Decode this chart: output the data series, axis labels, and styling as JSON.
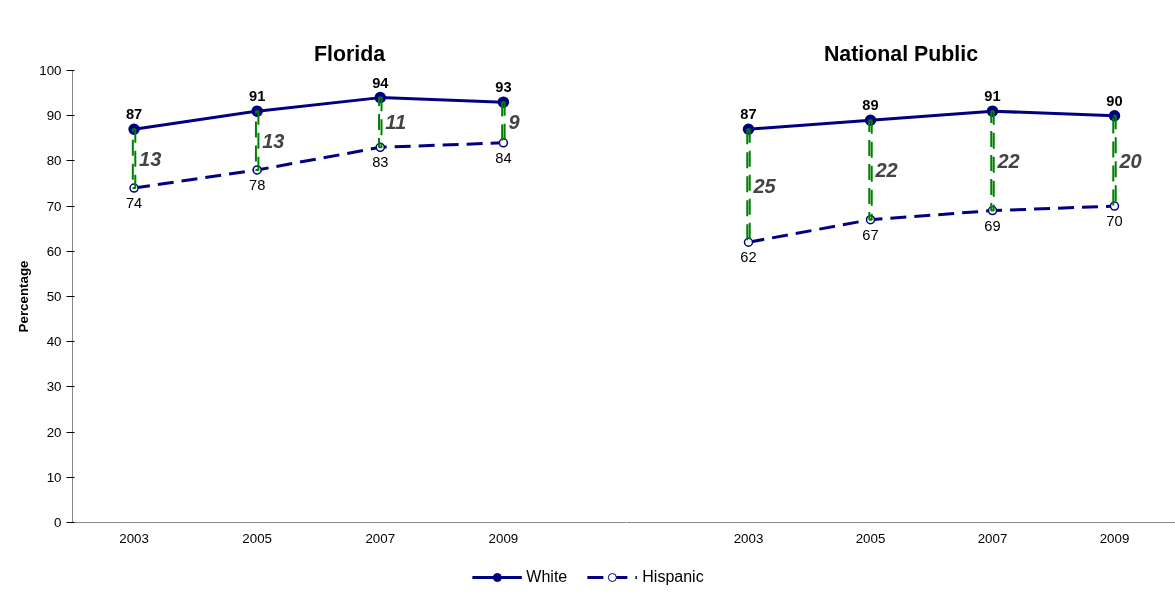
{
  "chart_data": [
    {
      "type": "line",
      "title": "Florida",
      "ylabel": "Percentage",
      "categories": [
        "2003",
        "2005",
        "2007",
        "2009"
      ],
      "ylim": [
        0,
        100
      ],
      "yticks": [
        0,
        10,
        20,
        30,
        40,
        50,
        60,
        70,
        80,
        90,
        100
      ],
      "marker": "circle",
      "data_labels": true,
      "legend": "bottom",
      "grid": false,
      "series": [
        {
          "name": "White",
          "color": "#000080",
          "line_style": "solid",
          "values": [
            87,
            91,
            94,
            93
          ]
        },
        {
          "name": "Hispanic",
          "color": "#000080",
          "line_style": "dashed",
          "values": [
            74,
            78,
            83,
            84
          ]
        },
        {
          "type": "bar",
          "color": "#008000",
          "line_style": "dashed",
          "base": [
            74,
            78,
            83,
            84
          ],
          "values": [
            13,
            13,
            11,
            9
          ],
          "value_labels": [
            "13",
            "13",
            "11",
            "9"
          ]
        }
      ]
    },
    {
      "type": "line",
      "title": "National Public",
      "categories": [
        "2003",
        "2005",
        "2007",
        "2009"
      ],
      "ylim": [
        0,
        100
      ],
      "yticks": [
        0,
        10,
        20,
        30,
        40,
        50,
        60,
        70,
        80,
        90,
        100
      ],
      "tick_labels": "x",
      "marker": "circle",
      "data_labels": true,
      "grid": false,
      "series": [
        {
          "color": "#000080",
          "line_style": "solid",
          "values": [
            87,
            89,
            91,
            90
          ]
        },
        {
          "color": "#000080",
          "line_style": "dashed",
          "values": [
            62,
            67,
            69,
            70
          ]
        },
        {
          "type": "bar",
          "color": "#008000",
          "line_style": "dashed",
          "base": [
            62,
            67,
            69,
            70
          ],
          "values": [
            25,
            22,
            22,
            20
          ],
          "value_labels": [
            "25",
            "22",
            "22",
            "20"
          ]
        }
      ]
    }
  ]
}
